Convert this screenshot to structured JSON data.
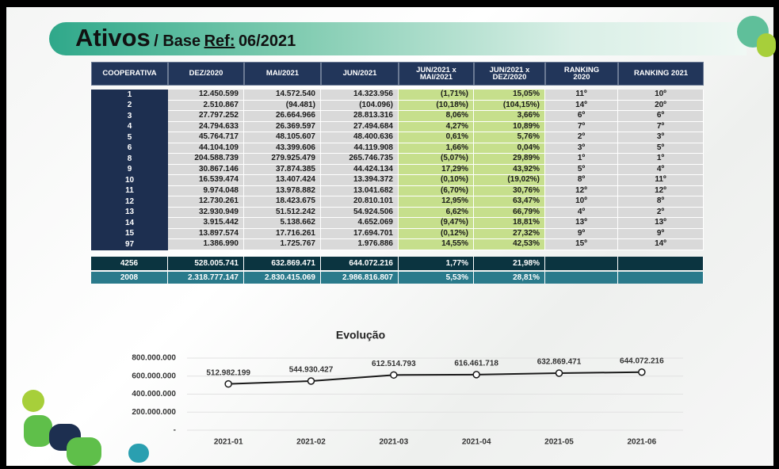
{
  "header": {
    "title": "Ativos",
    "prefix": "/ Base",
    "ref": "Ref:",
    "date": "06/2021"
  },
  "table": {
    "columns": [
      "COOPERATIVA",
      "DEZ/2020",
      "MAI/2021",
      "JUN/2021",
      "JUN/2021 x\nMAI/2021",
      "JUN/2021 x\nDEZ/2020",
      "RANKING\n2020",
      "RANKING 2021"
    ],
    "rows": [
      [
        "1",
        "12.450.599",
        "14.572.540",
        "14.323.956",
        "(1,71%)",
        "15,05%",
        "11º",
        "10º"
      ],
      [
        "2",
        "2.510.867",
        "(94.481)",
        "(104.096)",
        "(10,18%)",
        "(104,15%)",
        "14º",
        "20º"
      ],
      [
        "3",
        "27.797.252",
        "26.664.966",
        "28.813.316",
        "8,06%",
        "3,66%",
        "6º",
        "6º"
      ],
      [
        "4",
        "24.794.633",
        "26.369.597",
        "27.494.684",
        "4,27%",
        "10,89%",
        "7º",
        "7º"
      ],
      [
        "5",
        "45.764.717",
        "48.105.607",
        "48.400.636",
        "0,61%",
        "5,76%",
        "2º",
        "3º"
      ],
      [
        "6",
        "44.104.109",
        "43.399.606",
        "44.119.908",
        "1,66%",
        "0,04%",
        "3º",
        "5º"
      ],
      [
        "8",
        "204.588.739",
        "279.925.479",
        "265.746.735",
        "(5,07%)",
        "29,89%",
        "1º",
        "1º"
      ],
      [
        "9",
        "30.867.146",
        "37.874.385",
        "44.424.134",
        "17,29%",
        "43,92%",
        "5º",
        "4º"
      ],
      [
        "10",
        "16.539.474",
        "13.407.424",
        "13.394.372",
        "(0,10%)",
        "(19,02%)",
        "8º",
        "11º"
      ],
      [
        "11",
        "9.974.048",
        "13.978.882",
        "13.041.682",
        "(6,70%)",
        "30,76%",
        "12º",
        "12º"
      ],
      [
        "12",
        "12.730.261",
        "18.423.675",
        "20.810.101",
        "12,95%",
        "63,47%",
        "10º",
        "8º"
      ],
      [
        "13",
        "32.930.949",
        "51.512.242",
        "54.924.506",
        "6,62%",
        "66,79%",
        "4º",
        "2º"
      ],
      [
        "14",
        "3.915.442",
        "5.138.662",
        "4.652.069",
        "(9,47%)",
        "18,81%",
        "13º",
        "13º"
      ],
      [
        "15",
        "13.897.574",
        "17.716.261",
        "17.694.701",
        "(0,12%)",
        "27,32%",
        "9º",
        "9º"
      ],
      [
        "97",
        "1.386.990",
        "1.725.767",
        "1.976.886",
        "14,55%",
        "42,53%",
        "15º",
        "14º"
      ]
    ],
    "totals": [
      [
        "4256",
        "528.005.741",
        "632.869.471",
        "644.072.216",
        "1,77%",
        "21,98%"
      ],
      [
        "2008",
        "2.318.777.147",
        "2.830.415.069",
        "2.986.816.807",
        "5,53%",
        "28,81%"
      ]
    ]
  },
  "chart_data": {
    "type": "line",
    "title": "Evolução",
    "categories": [
      "2021-01",
      "2021-02",
      "2021-03",
      "2021-04",
      "2021-05",
      "2021-06"
    ],
    "values": [
      512982199,
      544930427,
      612514793,
      616461718,
      632869471,
      644072216
    ],
    "value_labels": [
      "512.982.199",
      "544.930.427",
      "612.514.793",
      "616.461.718",
      "632.869.471",
      "644.072.216"
    ],
    "color": "#1a1a1a",
    "grid": true,
    "ylim": [
      0,
      800000000
    ],
    "yticks": [
      {
        "value": 0,
        "label": "-"
      },
      {
        "value": 200000000,
        "label": "200.000.000"
      },
      {
        "value": 400000000,
        "label": "400.000.000"
      },
      {
        "value": 600000000,
        "label": "600.000.000"
      },
      {
        "value": 800000000,
        "label": "800.000.000"
      }
    ]
  }
}
